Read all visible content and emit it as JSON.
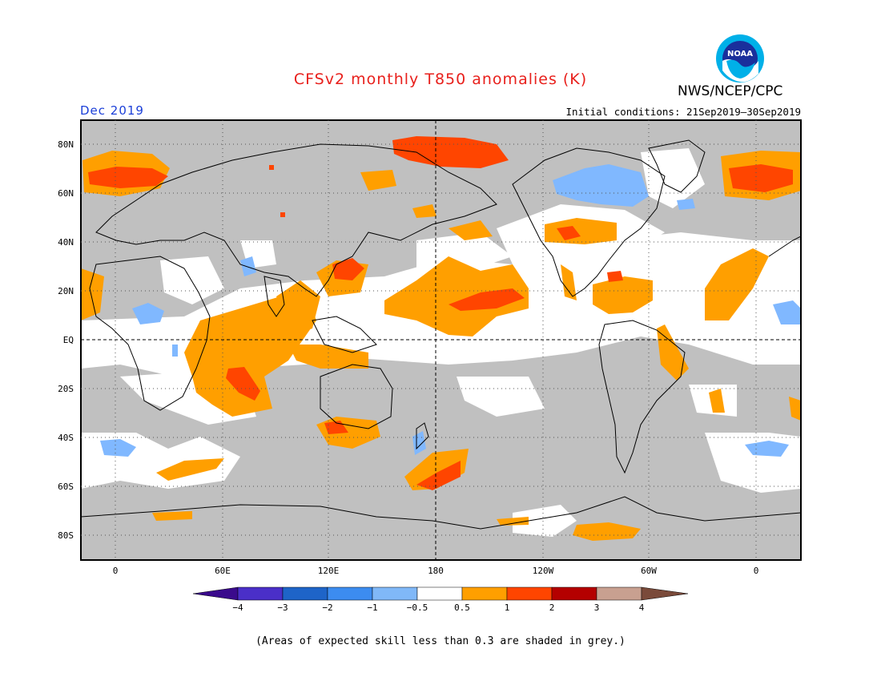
{
  "header": {
    "title": "CFSv2 monthly T850 anomalies (K)",
    "agency": "NWS/NCEP/CPC",
    "logo_text": "NOAA",
    "valid_month": "Dec 2019",
    "initial_conditions": "Initial conditions: 21Sep2019–30Sep2019"
  },
  "map": {
    "lat_labels": [
      "80N",
      "60N",
      "40N",
      "20N",
      "EQ",
      "20S",
      "40S",
      "60S",
      "80S"
    ],
    "lon_labels": [
      "0",
      "60E",
      "120E",
      "180",
      "120W",
      "60W",
      "0"
    ],
    "colors": {
      "grey_low_skill": "#c0c0c0",
      "neutral": "#ffffff",
      "pos_0_5": "#ff9f00",
      "pos_1": "#ff4500",
      "pos_2": "#b40000",
      "pos_3": "#c8a090",
      "neg_0_5": "#80b8ff",
      "neg_1": "#4a96f0",
      "neg_2": "#1e6ad2",
      "neg_3": "#3c3cc8",
      "neg_4": "#3a1aa0"
    }
  },
  "colorbar": {
    "tick_labels": [
      "−4",
      "−3",
      "−2",
      "−1",
      "−0.5",
      "0.5",
      "1",
      "2",
      "3",
      "4"
    ],
    "segment_colors": [
      "#4a2fc8",
      "#1e64c8",
      "#3c8cf0",
      "#80b8f8",
      "#ffffff",
      "#ff9f00",
      "#ff4500",
      "#b40000",
      "#c8a090"
    ],
    "low_arrow_color": "#3a0a8c",
    "high_arrow_color": "#7a4a3a"
  },
  "footnote": "(Areas of expected skill less than 0.3 are shaded in grey.)"
}
